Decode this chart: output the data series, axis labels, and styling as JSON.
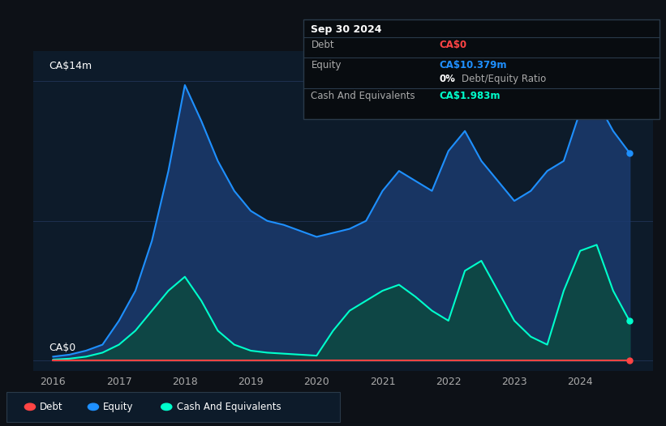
{
  "bg_color": "#0d1117",
  "plot_bg_color": "#0d1b2a",
  "grid_color": "#1e3050",
  "tooltip": {
    "title": "Sep 30 2024",
    "debt_label": "Debt",
    "debt_value": "CA$0",
    "equity_label": "Equity",
    "equity_value": "CA$10.379m",
    "ratio_pct": "0%",
    "ratio_text": "Debt/Equity Ratio",
    "cash_label": "Cash And Equivalents",
    "cash_value": "CA$1.983m"
  },
  "y_label_top": "CA$14m",
  "y_label_bottom": "CA$0",
  "x_ticks": [
    "2016",
    "2017",
    "2018",
    "2019",
    "2020",
    "2021",
    "2022",
    "2023",
    "2024"
  ],
  "equity_color": "#1e90ff",
  "equity_fill_color": "#1a3a6e",
  "cash_color": "#00ffcc",
  "cash_fill_color": "#0d4a40",
  "debt_color": "#ff4444",
  "legend_bg": "#0d1b2a",
  "legend_border": "#2a3a4a",
  "years": [
    2016.0,
    2016.25,
    2016.5,
    2016.75,
    2017.0,
    2017.25,
    2017.5,
    2017.75,
    2018.0,
    2018.25,
    2018.5,
    2018.75,
    2019.0,
    2019.25,
    2019.5,
    2019.75,
    2020.0,
    2020.25,
    2020.5,
    2020.75,
    2021.0,
    2021.25,
    2021.5,
    2021.75,
    2022.0,
    2022.25,
    2022.5,
    2022.75,
    2023.0,
    2023.25,
    2023.5,
    2023.75,
    2024.0,
    2024.25,
    2024.5,
    2024.75
  ],
  "equity": [
    0.2,
    0.3,
    0.5,
    0.8,
    2.0,
    3.5,
    6.0,
    9.5,
    13.8,
    12.0,
    10.0,
    8.5,
    7.5,
    7.0,
    6.8,
    6.5,
    6.2,
    6.4,
    6.6,
    7.0,
    8.5,
    9.5,
    9.0,
    8.5,
    10.5,
    11.5,
    10.0,
    9.0,
    8.0,
    8.5,
    9.5,
    10.0,
    12.5,
    13.0,
    11.5,
    10.4
  ],
  "cash": [
    0.05,
    0.1,
    0.2,
    0.4,
    0.8,
    1.5,
    2.5,
    3.5,
    4.2,
    3.0,
    1.5,
    0.8,
    0.5,
    0.4,
    0.35,
    0.3,
    0.25,
    1.5,
    2.5,
    3.0,
    3.5,
    3.8,
    3.2,
    2.5,
    2.0,
    4.5,
    5.0,
    3.5,
    2.0,
    1.2,
    0.8,
    3.5,
    5.5,
    5.8,
    3.5,
    1.98
  ],
  "debt": [
    0.0,
    0.0,
    0.0,
    0.0,
    0.0,
    0.0,
    0.0,
    0.0,
    0.0,
    0.0,
    0.0,
    0.0,
    0.0,
    0.0,
    0.0,
    0.0,
    0.0,
    0.0,
    0.0,
    0.0,
    0.0,
    0.0,
    0.0,
    0.0,
    0.0,
    0.0,
    0.0,
    0.0,
    0.0,
    0.0,
    0.0,
    0.0,
    0.0,
    0.0,
    0.0,
    0.0
  ]
}
